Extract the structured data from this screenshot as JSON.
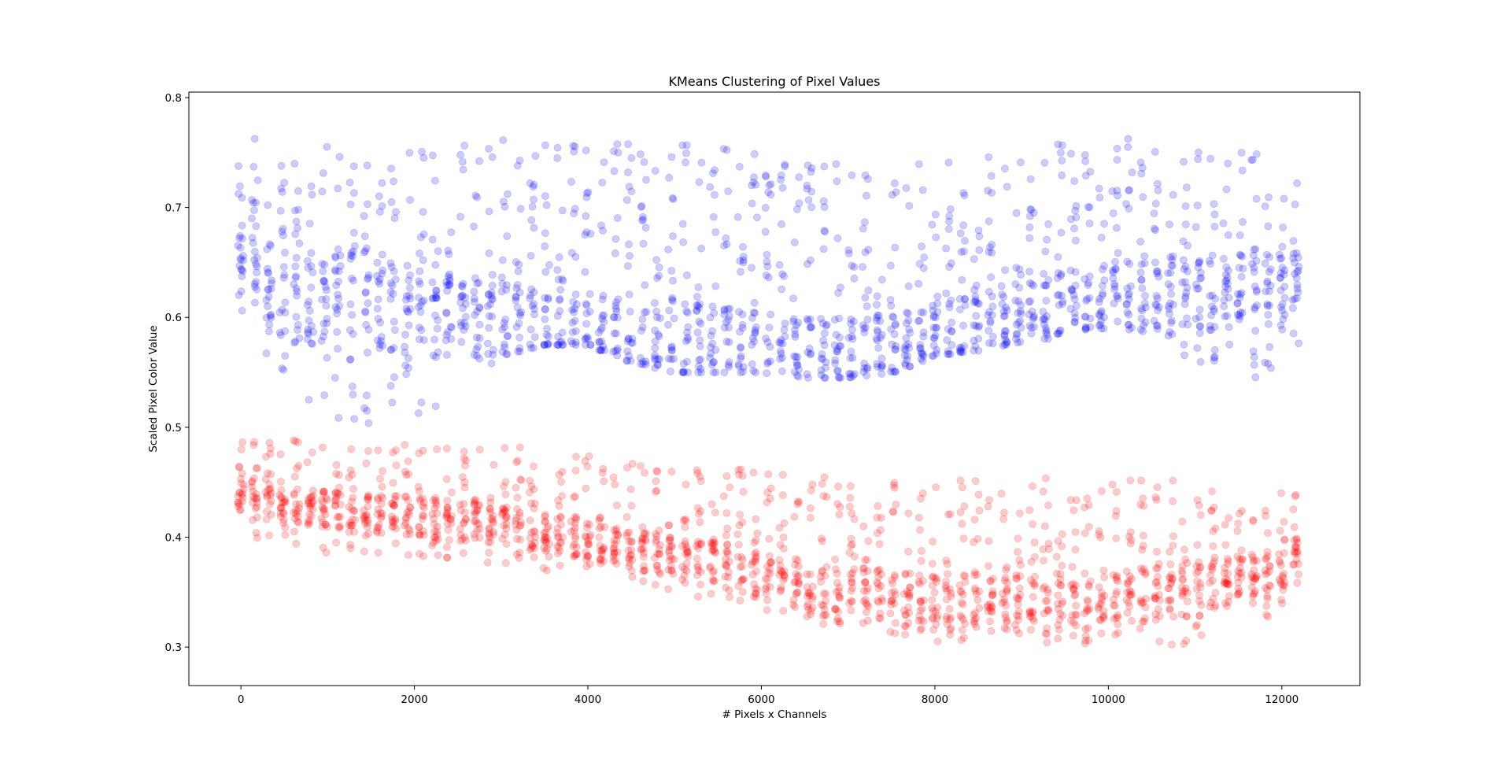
{
  "chart_data": {
    "type": "scatter",
    "title": "KMeans Clustering of Pixel Values",
    "xlabel": "# Pixels x Channels",
    "ylabel": "Scaled Pixel Color Value",
    "xlim": [
      -600,
      12900
    ],
    "ylim": [
      0.265,
      0.805
    ],
    "xticks": [
      0,
      2000,
      4000,
      6000,
      8000,
      10000,
      12000
    ],
    "yticks": [
      0.3,
      0.4,
      0.5,
      0.6,
      0.7,
      0.8
    ],
    "xtick_labels": [
      "0",
      "2000",
      "4000",
      "6000",
      "8000",
      "10000",
      "12000"
    ],
    "ytick_labels": [
      "0.3",
      "0.4",
      "0.5",
      "0.6",
      "0.7",
      "0.8"
    ],
    "grid": false,
    "legend": "none",
    "x_range": [
      0,
      12287
    ],
    "series": [
      {
        "color": "#0000ff",
        "alpha": 0.2,
        "trend": {
          "x": [
            0,
            500,
            1000,
            1500,
            2000,
            2500,
            3000,
            3500,
            4000,
            4500,
            5000,
            5500,
            6000,
            6500,
            7000,
            7500,
            8000,
            8500,
            9000,
            9500,
            10000,
            10500,
            11000,
            11500,
            12000,
            12287
          ],
          "low": [
            0.59,
            0.545,
            0.505,
            0.5,
            0.505,
            0.53,
            0.565,
            0.575,
            0.575,
            0.56,
            0.55,
            0.55,
            0.55,
            0.545,
            0.545,
            0.55,
            0.565,
            0.57,
            0.575,
            0.585,
            0.585,
            0.575,
            0.56,
            0.54,
            0.55,
            0.59
          ],
          "high": [
            0.765,
            0.76,
            0.765,
            0.765,
            0.76,
            0.765,
            0.765,
            0.765,
            0.765,
            0.76,
            0.76,
            0.76,
            0.75,
            0.745,
            0.74,
            0.74,
            0.74,
            0.745,
            0.75,
            0.76,
            0.765,
            0.765,
            0.765,
            0.76,
            0.75,
            0.73
          ],
          "dense": [
            0.66,
            0.61,
            0.62,
            0.62,
            0.61,
            0.6,
            0.6,
            0.59,
            0.59,
            0.58,
            0.58,
            0.575,
            0.57,
            0.565,
            0.57,
            0.57,
            0.58,
            0.59,
            0.605,
            0.615,
            0.62,
            0.62,
            0.625,
            0.62,
            0.625,
            0.66
          ]
        }
      },
      {
        "color": "#ff0000",
        "alpha": 0.2,
        "trend": {
          "x": [
            0,
            500,
            1000,
            1500,
            2000,
            2500,
            3000,
            3500,
            4000,
            4500,
            5000,
            5500,
            6000,
            6500,
            7000,
            7500,
            8000,
            8500,
            9000,
            9500,
            10000,
            10500,
            11000,
            11500,
            12000,
            12287
          ],
          "low": [
            0.4,
            0.39,
            0.385,
            0.38,
            0.38,
            0.38,
            0.375,
            0.37,
            0.365,
            0.36,
            0.35,
            0.34,
            0.335,
            0.325,
            0.315,
            0.31,
            0.305,
            0.305,
            0.305,
            0.3,
            0.305,
            0.3,
            0.3,
            0.32,
            0.33,
            0.35
          ],
          "high": [
            0.495,
            0.49,
            0.485,
            0.485,
            0.485,
            0.485,
            0.485,
            0.48,
            0.475,
            0.47,
            0.465,
            0.465,
            0.46,
            0.455,
            0.455,
            0.45,
            0.45,
            0.455,
            0.455,
            0.455,
            0.455,
            0.455,
            0.455,
            0.445,
            0.445,
            0.44
          ],
          "dense": [
            0.44,
            0.43,
            0.425,
            0.42,
            0.42,
            0.415,
            0.41,
            0.405,
            0.4,
            0.39,
            0.38,
            0.375,
            0.365,
            0.355,
            0.35,
            0.345,
            0.34,
            0.34,
            0.34,
            0.34,
            0.345,
            0.35,
            0.355,
            0.36,
            0.37,
            0.39
          ]
        }
      }
    ]
  }
}
